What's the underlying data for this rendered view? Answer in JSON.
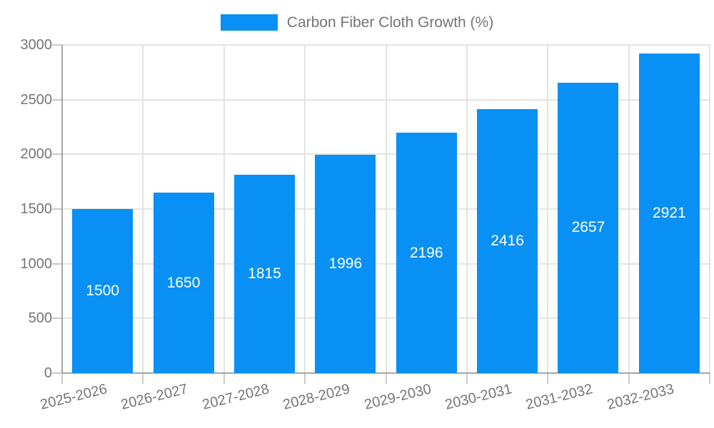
{
  "legend": {
    "label": "Carbon Fiber Cloth Growth (%)"
  },
  "chart_data": {
    "type": "bar",
    "title": "Carbon Fiber Cloth Growth (%)",
    "categories": [
      "2025-2026",
      "2026-2027",
      "2027-2028",
      "2028-2029",
      "2029-2030",
      "2030-2031",
      "2031-2032",
      "2032-2033"
    ],
    "values": [
      1500,
      1650,
      1815,
      1996,
      2196,
      2416,
      2657,
      2921
    ],
    "xlabel": "",
    "ylabel": "",
    "ylim": [
      0,
      3000
    ],
    "yticks": [
      0,
      500,
      1000,
      1500,
      2000,
      2500,
      3000
    ],
    "grid": true,
    "legend_position": "top-center",
    "value_labels": "inside-center",
    "colors": {
      "bar": "#0990f5",
      "grid": "#e3e3e3",
      "axis": "#a6a6a6",
      "tick": "#c9c9c9",
      "axis_text": "#757575",
      "value_label_text": "#ffffff",
      "background": "#ffffff"
    }
  }
}
